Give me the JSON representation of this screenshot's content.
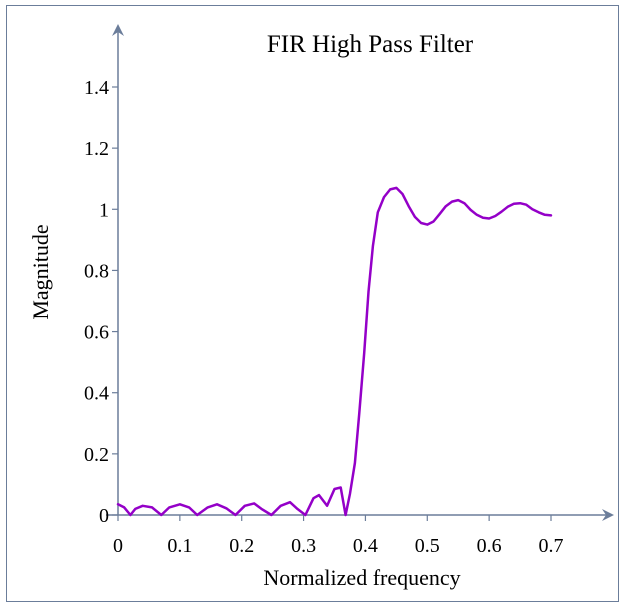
{
  "chart_data": {
    "type": "line",
    "title": "FIR High Pass Filter",
    "xlabel": "Normalized frequency",
    "ylabel": "Magnitude",
    "xlim": [
      0,
      0.7
    ],
    "ylim": [
      0,
      1.4
    ],
    "xticks": [
      0,
      0.1,
      0.2,
      0.3,
      0.4,
      0.5,
      0.6,
      0.7
    ],
    "xtick_labels": [
      "0",
      "0.1",
      "0.2",
      "0.3",
      "0.4",
      "0.5",
      "0.6",
      "0.7"
    ],
    "yticks": [
      0,
      0.2,
      0.4,
      0.6,
      0.8,
      1,
      1.2,
      1.4
    ],
    "ytick_labels": [
      "0",
      "0.2",
      "0.4",
      "0.6",
      "0.8",
      "1",
      "1.2",
      "1.4"
    ],
    "grid": false,
    "series": [
      {
        "color": "#9400c8",
        "x": [
          0.0,
          0.01,
          0.02,
          0.028,
          0.04,
          0.055,
          0.07,
          0.083,
          0.1,
          0.115,
          0.128,
          0.145,
          0.16,
          0.175,
          0.19,
          0.205,
          0.22,
          0.232,
          0.248,
          0.263,
          0.278,
          0.29,
          0.303,
          0.316,
          0.325,
          0.338,
          0.35,
          0.36,
          0.368,
          0.375,
          0.383,
          0.39,
          0.398,
          0.405,
          0.412,
          0.42,
          0.43,
          0.44,
          0.45,
          0.46,
          0.47,
          0.48,
          0.49,
          0.5,
          0.51,
          0.52,
          0.53,
          0.54,
          0.55,
          0.56,
          0.57,
          0.58,
          0.59,
          0.6,
          0.61,
          0.62,
          0.63,
          0.64,
          0.65,
          0.66,
          0.67,
          0.68,
          0.69,
          0.7
        ],
        "y": [
          0.035,
          0.025,
          0.0,
          0.02,
          0.03,
          0.025,
          0.0,
          0.025,
          0.035,
          0.025,
          0.0,
          0.025,
          0.035,
          0.022,
          0.0,
          0.03,
          0.038,
          0.02,
          0.0,
          0.03,
          0.042,
          0.02,
          0.0,
          0.055,
          0.065,
          0.03,
          0.085,
          0.09,
          0.0,
          0.07,
          0.17,
          0.33,
          0.53,
          0.73,
          0.88,
          0.99,
          1.04,
          1.065,
          1.07,
          1.05,
          1.01,
          0.975,
          0.955,
          0.95,
          0.96,
          0.985,
          1.01,
          1.025,
          1.03,
          1.02,
          0.998,
          0.982,
          0.972,
          0.97,
          0.978,
          0.992,
          1.008,
          1.018,
          1.02,
          1.015,
          1.0,
          0.99,
          0.982,
          0.98
        ]
      }
    ]
  }
}
